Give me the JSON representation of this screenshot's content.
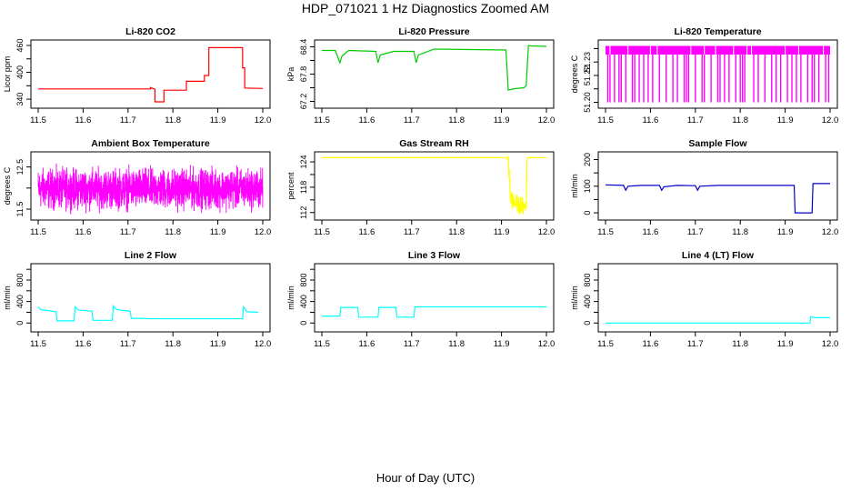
{
  "figure": {
    "title": "HDP_071021  1 Hz Diagnostics Zoomed AM",
    "xlabel": "Hour of Day (UTC)"
  },
  "chart_data": [
    {
      "type": "line",
      "title": "Li-820 CO2",
      "ylabel": "Licor ppm",
      "color": "#ff0000",
      "xlim": [
        11.5,
        12.0
      ],
      "ylim": [
        330,
        462
      ],
      "xticks": [
        11.5,
        11.6,
        11.7,
        11.8,
        11.9,
        12.0
      ],
      "xtick_labels": [
        "11.5",
        "11.6",
        "11.7",
        "11.8",
        "11.9",
        "12.0"
      ],
      "yticks": [
        340,
        370,
        400,
        430,
        460
      ],
      "ytick_labels": [
        "340",
        "",
        "400",
        "",
        "460"
      ],
      "x": [
        11.5,
        11.75,
        11.75,
        11.76,
        11.76,
        11.78,
        11.78,
        11.83,
        11.83,
        11.87,
        11.87,
        11.88,
        11.88,
        11.955,
        11.955,
        11.96,
        11.96,
        12.0
      ],
      "y": [
        363,
        363,
        366,
        362,
        334,
        334,
        360,
        360,
        380,
        380,
        393,
        393,
        455,
        455,
        410,
        410,
        365,
        364
      ]
    },
    {
      "type": "line",
      "title": "Li-820 Pressure",
      "ylabel": "kPa",
      "color": "#00cc00",
      "xlim": [
        11.5,
        12.0
      ],
      "ylim": [
        67.15,
        68.45
      ],
      "xticks": [
        11.5,
        11.6,
        11.7,
        11.8,
        11.9,
        12.0
      ],
      "xtick_labels": [
        "11.5",
        "11.6",
        "11.7",
        "11.8",
        "11.9",
        "12.0"
      ],
      "yticks": [
        67.2,
        67.5,
        67.8,
        68.1,
        68.4
      ],
      "ytick_labels": [
        "67.2",
        "",
        "67.8",
        "",
        "68.4"
      ],
      "x": [
        11.5,
        11.53,
        11.54,
        11.545,
        11.56,
        11.62,
        11.625,
        11.63,
        11.66,
        11.705,
        11.71,
        11.715,
        11.75,
        11.91,
        11.915,
        11.93,
        11.95,
        11.955,
        11.96,
        11.965,
        12.0
      ],
      "y": [
        68.32,
        68.32,
        68.05,
        68.2,
        68.32,
        68.3,
        68.05,
        68.22,
        68.3,
        68.3,
        68.05,
        68.22,
        68.35,
        68.33,
        67.45,
        67.48,
        67.5,
        67.55,
        68.43,
        68.42,
        68.41
      ]
    },
    {
      "type": "line",
      "title": "Li-820 Temperature",
      "ylabel": "degrees C",
      "color": "#ff00ff",
      "xlim": [
        11.5,
        12.0
      ],
      "ylim": [
        51.199,
        51.243
      ],
      "xticks": [
        11.5,
        11.6,
        11.7,
        11.8,
        11.9,
        12.0
      ],
      "xtick_labels": [
        "11.5",
        "11.6",
        "11.7",
        "11.8",
        "11.9",
        "12.0"
      ],
      "yticks": [
        51.2,
        51.21,
        51.22,
        51.23,
        51.24
      ],
      "ytick_labels": [
        "51.20",
        "",
        "51.22",
        "51.23",
        ""
      ],
      "band": {
        "low": 51.2,
        "high": 51.242
      },
      "spikes_to_low": [
        11.505,
        11.51,
        11.52,
        11.53,
        11.535,
        11.545,
        11.56,
        11.565,
        11.575,
        11.585,
        11.595,
        11.605,
        11.62,
        11.635,
        11.65,
        11.66,
        11.675,
        11.68,
        11.685,
        11.7,
        11.715,
        11.72,
        11.735,
        11.75,
        11.755,
        11.765,
        11.775,
        11.79,
        11.8,
        11.805,
        11.81,
        11.83,
        11.84,
        11.855,
        11.87,
        11.88,
        11.89,
        11.905,
        11.915,
        11.925,
        11.935,
        11.95,
        11.96,
        11.965,
        11.975,
        11.99,
        11.997
      ],
      "spikes_to_high": [
        11.51,
        11.55,
        11.6,
        11.615,
        11.69,
        11.72,
        11.745,
        11.785,
        11.815,
        11.825,
        11.9,
        11.93,
        11.985
      ]
    },
    {
      "type": "line",
      "title": "Ambient Box Temperature",
      "ylabel": "degrees C",
      "color": "#ff00ff",
      "xlim": [
        11.5,
        12.0
      ],
      "ylim": [
        11.35,
        12.75
      ],
      "xticks": [
        11.5,
        11.6,
        11.7,
        11.8,
        11.9,
        12.0
      ],
      "xtick_labels": [
        "11.5",
        "11.6",
        "11.7",
        "11.8",
        "11.9",
        "12.0"
      ],
      "yticks": [
        11.5,
        12.0,
        12.5
      ],
      "ytick_labels": [
        "11.5",
        "",
        "12.5"
      ],
      "noise": {
        "mean": 11.98,
        "spread": 0.28,
        "min": 11.38,
        "max": 12.65,
        "points": 1800
      }
    },
    {
      "type": "line",
      "title": "Gas Stream RH",
      "ylabel": "percent",
      "color": "#ffff00",
      "xlim": [
        11.5,
        12.0
      ],
      "ylim": [
        111.3,
        125.3
      ],
      "xticks": [
        11.5,
        11.6,
        11.7,
        11.8,
        11.9,
        12.0
      ],
      "xtick_labels": [
        "11.5",
        "11.6",
        "11.7",
        "11.8",
        "11.9",
        "12.0"
      ],
      "yticks": [
        112,
        115,
        118,
        121,
        124
      ],
      "ytick_labels": [
        "112",
        "",
        "118",
        "",
        "124"
      ],
      "x": [
        11.5,
        11.91,
        11.915,
        11.92,
        11.925,
        11.935,
        11.945,
        11.955,
        11.957,
        11.96,
        12.0
      ],
      "y": [
        125.0,
        125.0,
        124.5,
        116,
        114.5,
        114,
        113.5,
        113.2,
        124.8,
        125.0,
        125.0
      ],
      "noise_window": {
        "x0": 11.915,
        "x1": 11.957,
        "spread": 2.2
      }
    },
    {
      "type": "line",
      "title": "Sample Flow",
      "ylabel": "ml/min",
      "color": "#0000cc",
      "xlim": [
        11.5,
        12.0
      ],
      "ylim": [
        -10,
        212
      ],
      "xticks": [
        11.5,
        11.6,
        11.7,
        11.8,
        11.9,
        12.0
      ],
      "xtick_labels": [
        "11.5",
        "11.6",
        "11.7",
        "11.8",
        "11.9",
        "12.0"
      ],
      "yticks": [
        0,
        50,
        100,
        150,
        200
      ],
      "ytick_labels": [
        "0",
        "",
        "100",
        "",
        "200"
      ],
      "x": [
        11.5,
        11.54,
        11.545,
        11.55,
        11.58,
        11.62,
        11.625,
        11.63,
        11.66,
        11.7,
        11.705,
        11.71,
        11.75,
        11.92,
        11.922,
        11.96,
        11.962,
        12.0
      ],
      "y": [
        105,
        103,
        85,
        100,
        103,
        103,
        85,
        98,
        103,
        102,
        85,
        100,
        103,
        103,
        0,
        0,
        110,
        110
      ]
    },
    {
      "type": "line",
      "title": "Line 2 Flow",
      "ylabel": "ml/min",
      "color": "#00ffff",
      "xlim": [
        11.5,
        12.0
      ],
      "ylim": [
        -80,
        1020
      ],
      "xticks": [
        11.5,
        11.6,
        11.7,
        11.8,
        11.9,
        12.0
      ],
      "xtick_labels": [
        "11.5",
        "11.6",
        "11.7",
        "11.8",
        "11.9",
        "12.0"
      ],
      "yticks": [
        0,
        200,
        400,
        600,
        800,
        1000
      ],
      "ytick_labels": [
        "0",
        "",
        "400",
        "",
        "800",
        ""
      ],
      "x": [
        11.5,
        11.505,
        11.54,
        11.542,
        11.58,
        11.582,
        11.59,
        11.62,
        11.622,
        11.665,
        11.667,
        11.675,
        11.705,
        11.707,
        11.75,
        11.955,
        11.957,
        11.965,
        11.99
      ],
      "y": [
        300,
        250,
        210,
        40,
        40,
        300,
        240,
        220,
        50,
        50,
        320,
        250,
        220,
        90,
        80,
        80,
        300,
        210,
        200
      ]
    },
    {
      "type": "line",
      "title": "Line 3 Flow",
      "ylabel": "ml/min",
      "color": "#00ffff",
      "xlim": [
        11.5,
        12.0
      ],
      "ylim": [
        -80,
        1020
      ],
      "xticks": [
        11.5,
        11.6,
        11.7,
        11.8,
        11.9,
        12.0
      ],
      "xtick_labels": [
        "11.5",
        "11.6",
        "11.7",
        "11.8",
        "11.9",
        "12.0"
      ],
      "yticks": [
        0,
        200,
        400,
        600,
        800,
        1000
      ],
      "ytick_labels": [
        "0",
        "",
        "400",
        "",
        "800",
        ""
      ],
      "x": [
        11.5,
        11.54,
        11.542,
        11.58,
        11.582,
        11.625,
        11.627,
        11.665,
        11.667,
        11.705,
        11.707,
        12.0
      ],
      "y": [
        130,
        130,
        290,
        290,
        110,
        110,
        290,
        290,
        110,
        110,
        300,
        300
      ]
    },
    {
      "type": "line",
      "title": "Line 4 (LT) Flow",
      "ylabel": "ml/min",
      "color": "#00ffff",
      "xlim": [
        11.5,
        12.0
      ],
      "ylim": [
        -80,
        1020
      ],
      "xticks": [
        11.5,
        11.6,
        11.7,
        11.8,
        11.9,
        12.0
      ],
      "xtick_labels": [
        "11.5",
        "11.6",
        "11.7",
        "11.8",
        "11.9",
        "12.0"
      ],
      "yticks": [
        0,
        200,
        400,
        600,
        800,
        1000
      ],
      "ytick_labels": [
        "0",
        "",
        "400",
        "",
        "800",
        ""
      ],
      "x": [
        11.5,
        11.955,
        11.957,
        11.965,
        12.0
      ],
      "y": [
        0,
        0,
        120,
        100,
        100
      ]
    }
  ]
}
